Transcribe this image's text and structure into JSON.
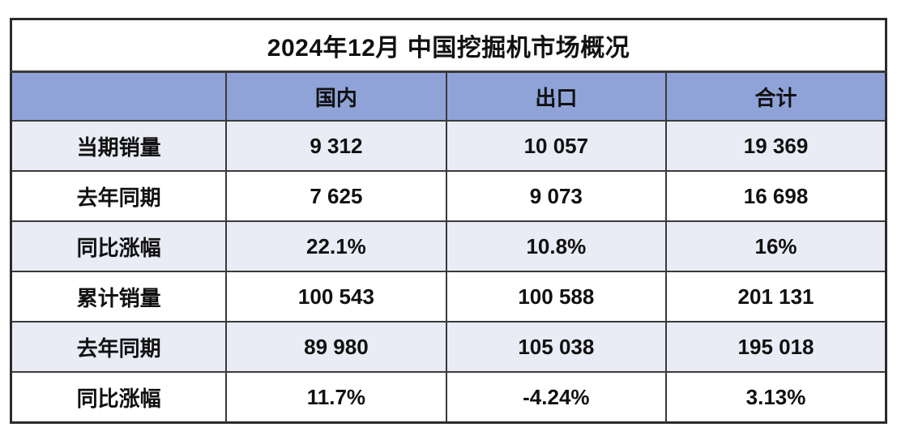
{
  "table": {
    "title": "2024年12月 中国挖掘机市场概况",
    "columns": {
      "label": "",
      "domestic": "国内",
      "export": "出口",
      "total": "合计"
    },
    "rows": [
      {
        "label": "当期销量",
        "values": [
          "9 312",
          "10 057",
          "19 369"
        ]
      },
      {
        "label": "去年同期",
        "values": [
          "7 625",
          "9 073",
          "16 698"
        ]
      },
      {
        "label": "同比涨幅",
        "values": [
          "22.1%",
          "10.8%",
          "16%"
        ]
      },
      {
        "label": "累计销量",
        "values": [
          "100 543",
          "100 588",
          "201 131"
        ]
      },
      {
        "label": "去年同期",
        "values": [
          "89 980",
          "105 038",
          "195 018"
        ]
      },
      {
        "label": "同比涨幅",
        "values": [
          "11.7%",
          "-4.24%",
          "3.13%"
        ]
      }
    ],
    "colors": {
      "header_bg": "#8fa3d8",
      "row_alt_bg": "#e9ebf5",
      "row_bg": "#ffffff",
      "border": "#3a3a3a",
      "text": "#111111"
    }
  }
}
